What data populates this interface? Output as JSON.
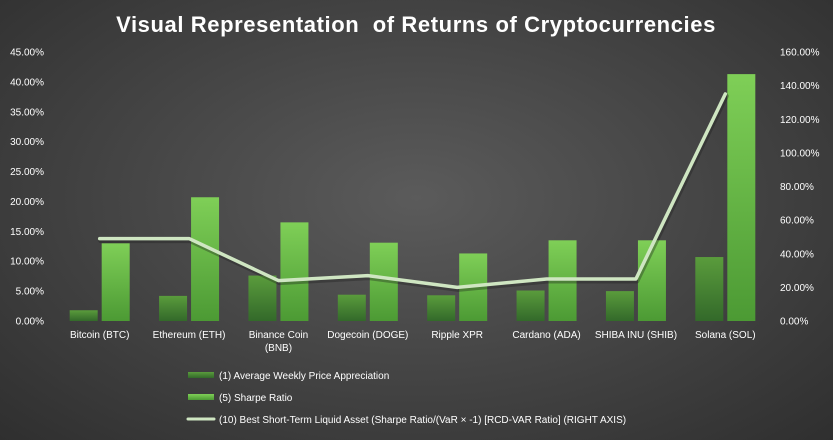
{
  "chart_data": {
    "type": "bar",
    "title": "Visual Representation  of Returns of Cryptocurrencies",
    "categories": [
      [
        "Bitcoin (BTC)"
      ],
      [
        "Ethereum (ETH)"
      ],
      [
        "Binance Coin",
        "(BNB)"
      ],
      [
        "Dogecoin (DOGE)"
      ],
      [
        "Ripple XPR"
      ],
      [
        "Cardano (ADA)"
      ],
      [
        "SHIBA INU (SHIB)"
      ],
      [
        "Solana (SOL)"
      ]
    ],
    "left_axis": {
      "ylim": [
        0,
        0.45
      ],
      "ticks": [
        0,
        0.05,
        0.1,
        0.15,
        0.2,
        0.25,
        0.3,
        0.35,
        0.4,
        0.45
      ],
      "tick_labels": [
        "0.00%",
        "5.00%",
        "10.00%",
        "15.00%",
        "20.00%",
        "25.00%",
        "30.00%",
        "35.00%",
        "40.00%",
        "45.00%"
      ]
    },
    "right_axis": {
      "ylim": [
        0,
        1.6
      ],
      "ticks": [
        0,
        0.2,
        0.4,
        0.6,
        0.8,
        1.0,
        1.2,
        1.4,
        1.6
      ],
      "tick_labels": [
        "0.00%",
        "20.00%",
        "40.00%",
        "60.00%",
        "80.00%",
        "100.00%",
        "120.00%",
        "140.00%",
        "160.00%"
      ]
    },
    "series": [
      {
        "name": "(1) Average Weekly Price Appreciation",
        "type": "bar",
        "axis": "left",
        "color": "#4a8a32",
        "values": [
          0.018,
          0.042,
          0.076,
          0.044,
          0.043,
          0.051,
          0.05,
          0.107
        ]
      },
      {
        "name": "(5) Sharpe Ratio",
        "type": "bar",
        "axis": "left",
        "color": "#6cc044",
        "values": [
          0.13,
          0.207,
          0.165,
          0.131,
          0.113,
          0.135,
          0.135,
          0.413
        ]
      },
      {
        "name": "(10) Best Short-Term Liquid Asset (Sharpe Ratio/(VaR × -1) [RCD-VAR Ratio] (RIGHT AXIS)",
        "type": "line",
        "axis": "right",
        "color": "#cfe6c2",
        "values": [
          0.49,
          0.49,
          0.24,
          0.27,
          0.2,
          0.25,
          0.25,
          1.35
        ]
      }
    ]
  }
}
